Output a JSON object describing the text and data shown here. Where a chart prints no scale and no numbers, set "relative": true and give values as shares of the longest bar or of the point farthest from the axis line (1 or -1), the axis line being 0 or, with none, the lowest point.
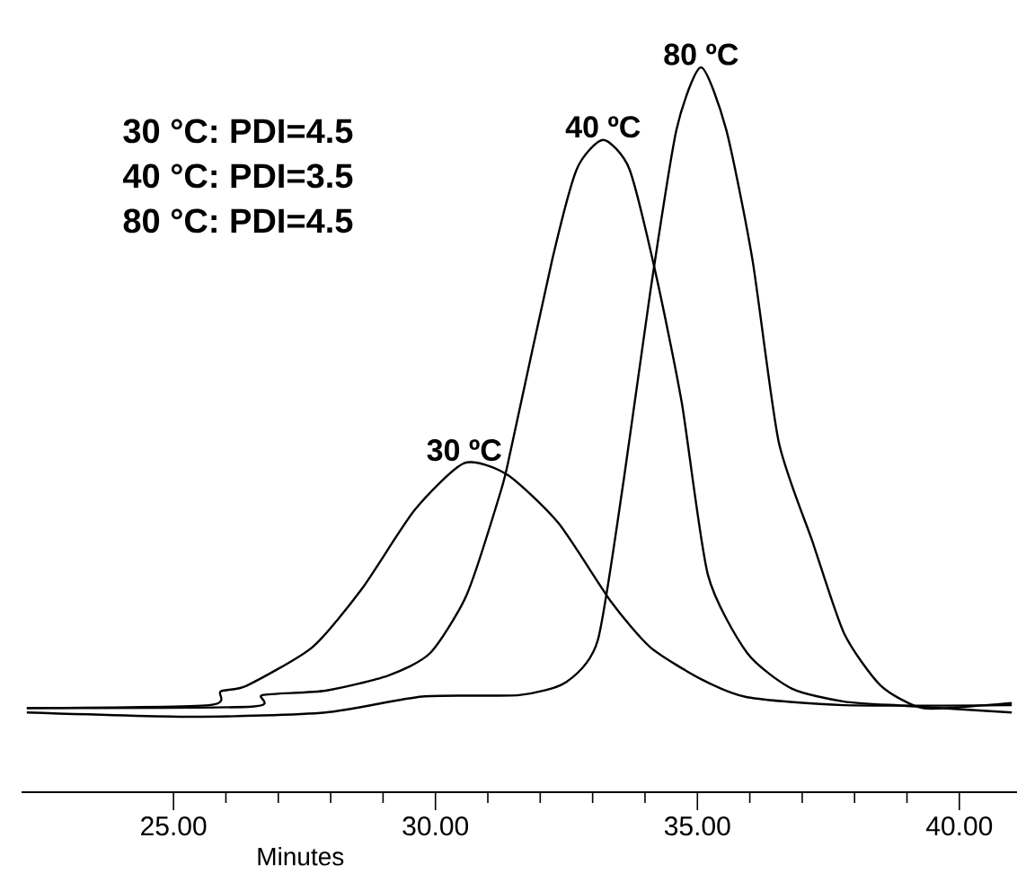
{
  "chart_data": {
    "type": "line",
    "relative": true,
    "xlabel": "Minutes",
    "xlim": [
      22.1,
      41.1
    ],
    "xticks": [
      {
        "value": 25,
        "label": "25.00"
      },
      {
        "value": 30,
        "label": "30.00"
      },
      {
        "value": 35,
        "label": "35.00"
      },
      {
        "value": 40,
        "label": "40.00"
      }
    ],
    "annotations": [
      "30 °C: PDI=4.5",
      "40 °C: PDI=3.5",
      "80 °C: PDI=4.5"
    ],
    "series": [
      {
        "name": "30 ºC",
        "color": "#000000",
        "x": [
          22.2,
          25.68,
          25.9,
          26.4,
          27.65,
          28.6,
          29.6,
          30.55,
          31.37,
          32.35,
          33.35,
          34.1,
          35.07,
          35.95,
          37.8,
          41.0
        ],
        "values": [
          0.116,
          0.12,
          0.139,
          0.147,
          0.2,
          0.281,
          0.389,
          0.454,
          0.438,
          0.371,
          0.263,
          0.2,
          0.156,
          0.131,
          0.12,
          0.12
        ]
      },
      {
        "name": "40 ºC",
        "color": "#000000",
        "x": [
          22.2,
          26.5,
          26.7,
          27.9,
          29.1,
          29.9,
          30.6,
          31.25,
          31.45,
          32.23,
          32.7,
          33.2,
          33.7,
          34.2,
          34.7,
          35.2,
          35.95,
          36.8,
          37.8,
          39.0,
          41.0
        ],
        "values": [
          0.116,
          0.118,
          0.134,
          0.14,
          0.161,
          0.192,
          0.273,
          0.416,
          0.476,
          0.735,
          0.86,
          0.9,
          0.86,
          0.717,
          0.538,
          0.3,
          0.192,
          0.143,
          0.125,
          0.119,
          0.11
        ]
      },
      {
        "name": "80 ºC",
        "color": "#000000",
        "x": [
          22.2,
          25.4,
          27.9,
          29.75,
          31.6,
          32.5,
          33.1,
          33.6,
          34.1,
          34.6,
          35.07,
          35.55,
          36.05,
          36.55,
          37.2,
          37.8,
          38.5,
          39.3,
          40.5,
          41.0
        ],
        "values": [
          0.11,
          0.104,
          0.11,
          0.132,
          0.134,
          0.152,
          0.21,
          0.434,
          0.69,
          0.914,
          1,
          0.914,
          0.735,
          0.484,
          0.345,
          0.219,
          0.147,
          0.116,
          0.12,
          0.123
        ]
      }
    ]
  }
}
